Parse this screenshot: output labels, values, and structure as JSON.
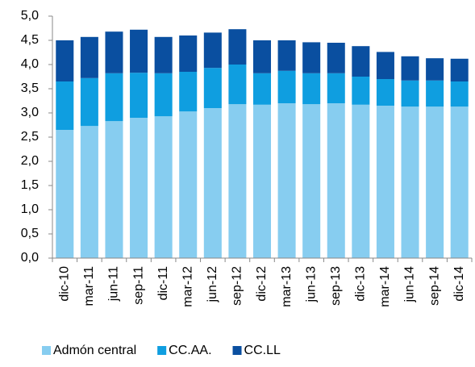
{
  "chart_data": {
    "type": "stacked_bar",
    "categories": [
      "dic-10",
      "mar-11",
      "jun-11",
      "sep-11",
      "dic-11",
      "mar-12",
      "jun-12",
      "sep-12",
      "dic-12",
      "mar-13",
      "jun-13",
      "sep-13",
      "dic-13",
      "mar-14",
      "jun-14",
      "sep-14",
      "dic-14"
    ],
    "series": [
      {
        "name": "Admón central",
        "color": "#87cdf0",
        "values": [
          2.65,
          2.73,
          2.83,
          2.9,
          2.93,
          3.03,
          3.1,
          3.18,
          3.17,
          3.2,
          3.18,
          3.2,
          3.17,
          3.15,
          3.13,
          3.13,
          3.13
        ]
      },
      {
        "name": "CC.AA.",
        "color": "#0f9ee0",
        "values": [
          1.0,
          0.99,
          0.99,
          0.93,
          0.89,
          0.82,
          0.83,
          0.82,
          0.65,
          0.67,
          0.64,
          0.62,
          0.58,
          0.55,
          0.54,
          0.54,
          0.52
        ]
      },
      {
        "name": "CC.LL",
        "color": "#0a4fa0",
        "values": [
          0.85,
          0.85,
          0.86,
          0.89,
          0.75,
          0.75,
          0.73,
          0.73,
          0.68,
          0.63,
          0.64,
          0.63,
          0.63,
          0.56,
          0.5,
          0.46,
          0.47
        ]
      }
    ],
    "ylim": [
      0,
      5
    ],
    "yticks": [
      {
        "value": 0,
        "label": "0,0"
      },
      {
        "value": 0.5,
        "label": "0,5"
      },
      {
        "value": 1,
        "label": "1,0"
      },
      {
        "value": 1.5,
        "label": "1,5"
      },
      {
        "value": 2,
        "label": "2,0"
      },
      {
        "value": 2.5,
        "label": "2,5"
      },
      {
        "value": 3,
        "label": "3,0"
      },
      {
        "value": 3.5,
        "label": "3,5"
      },
      {
        "value": 4,
        "label": "4,0"
      },
      {
        "value": 4.5,
        "label": "4,5"
      },
      {
        "value": 5,
        "label": "5,0"
      }
    ],
    "legend": "bottom"
  }
}
